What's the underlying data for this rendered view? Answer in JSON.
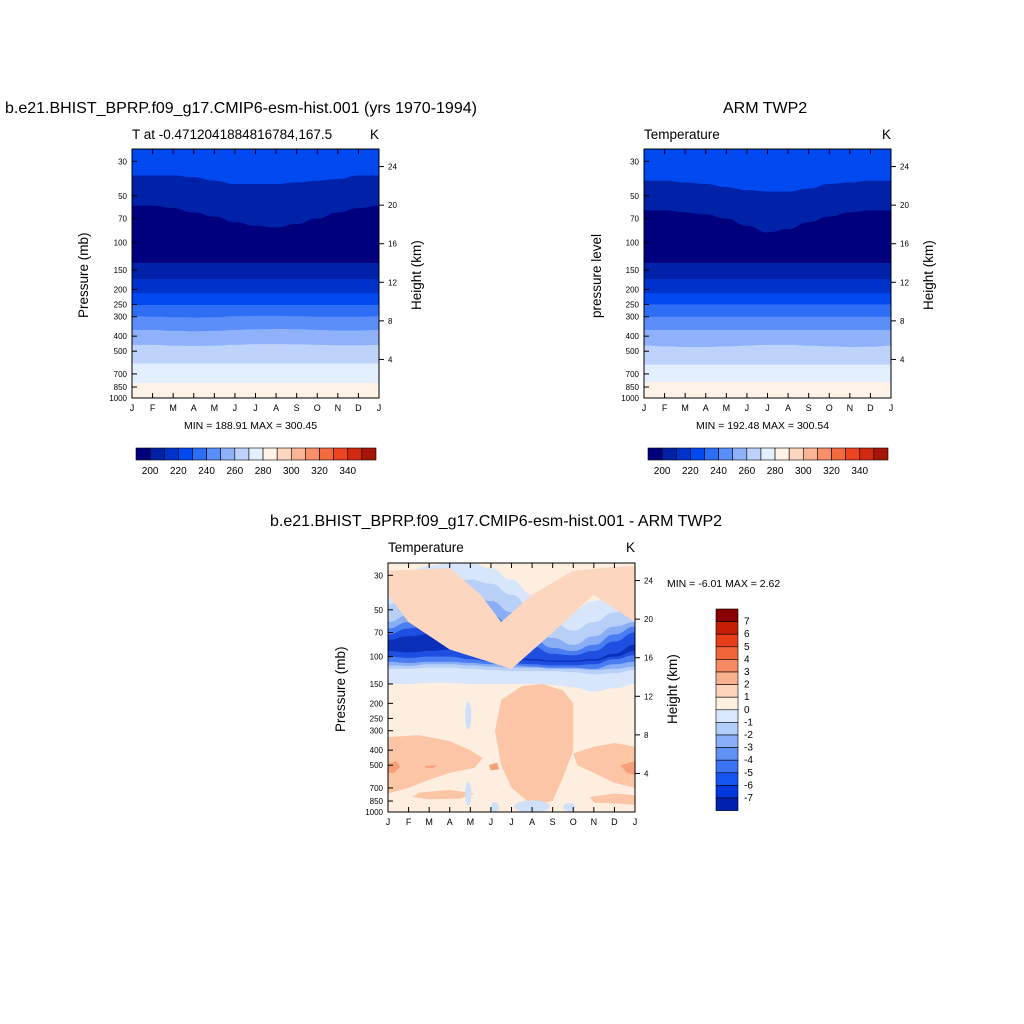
{
  "colors": {
    "t_levels": [
      "#00007f",
      "#0022a8",
      "#0033cc",
      "#0048f0",
      "#2e6ef5",
      "#5b8ef8",
      "#8fb1fa",
      "#bdd3fc",
      "#e3eefe",
      "#fff2e6",
      "#fdd6bf",
      "#fbb596",
      "#f8916a",
      "#f36a3f",
      "#ed4520",
      "#d22a10",
      "#a61605",
      "#7d0000"
    ],
    "d_levels": [
      "#000080",
      "#0020b0",
      "#0038e0",
      "#1555f0",
      "#3a74f3",
      "#5f91f6",
      "#8aaef8",
      "#b3cdfb",
      "#dae8fe",
      "#fff0e2",
      "#fcd3bb",
      "#f9b08f",
      "#f58a62",
      "#f06438",
      "#e63e18",
      "#c41f06",
      "#8a0000"
    ]
  },
  "panels": [
    {
      "title": "b.e21.BHIST_BPRP.f09_g17.CMIP6-esm-hist.001 (yrs 1970-1994)",
      "left_label": "T at -0.47120418848167​84,167.5",
      "right_label": "K",
      "ylabel": "Pressure (mb)",
      "ylabel_right": "Height (km)",
      "minmax": "MIN = 188.91 MAX = 300.45"
    },
    {
      "title": "ARM TWP2",
      "left_label": "Temperature",
      "right_label": "K",
      "ylabel": "pressure level",
      "ylabel_right": "Height (km)",
      "minmax": "MIN = 192.48 MAX = 300.54"
    },
    {
      "title": "b.e21.BHIST_BPRP.f09_g17.CMIP6-esm-hist.001 - ARM TWP2",
      "left_label": "Temperature",
      "right_label": "K",
      "ylabel": "Pressure (mb)",
      "ylabel_right": "Height (km)",
      "minmax": "MIN =  -6.01 MAX =   2.62"
    }
  ],
  "chart_data": [
    {
      "type": "heatmap",
      "x_tick_labels": [
        "J",
        "F",
        "M",
        "A",
        "M",
        "J",
        "J",
        "A",
        "S",
        "O",
        "N",
        "D",
        "J"
      ],
      "y_tick_labels": [
        "30",
        "50",
        "70",
        "100",
        "150",
        "200",
        "250",
        "300",
        "400",
        "500",
        "700",
        "850",
        "1000"
      ],
      "y_tick_values": [
        30,
        50,
        70,
        100,
        150,
        200,
        250,
        300,
        400,
        500,
        700,
        850,
        1000
      ],
      "y_scale": "log",
      "ylim": [
        25,
        1000
      ],
      "height_ticks": [
        "24",
        "20",
        "16",
        "12",
        "8",
        "4"
      ],
      "height_values": [
        24,
        20,
        16,
        12,
        8,
        4
      ],
      "colorbar_labels": [
        "200",
        "220",
        "240",
        "260",
        "280",
        "300",
        "320",
        "340"
      ],
      "boundaries": [
        {
          "name": "b1",
          "pressure": [
            37,
            37,
            37,
            38,
            40,
            42,
            42,
            42,
            41,
            40,
            39,
            37,
            37
          ]
        },
        {
          "name": "b2",
          "pressure": [
            58,
            58,
            60,
            64,
            68,
            74,
            78,
            80,
            76,
            70,
            64,
            60,
            58
          ]
        },
        {
          "name": "b3",
          "pressure": [
            135,
            135,
            135,
            135,
            135,
            135,
            135,
            135,
            135,
            135,
            135,
            135,
            135
          ]
        },
        {
          "name": "b4",
          "pressure": [
            172,
            172,
            172,
            172,
            172,
            172,
            172,
            172,
            172,
            172,
            172,
            172,
            172
          ]
        },
        {
          "name": "b5",
          "pressure": [
            212,
            212,
            212,
            212,
            212,
            212,
            212,
            212,
            212,
            212,
            212,
            212,
            212
          ]
        },
        {
          "name": "b6",
          "pressure": [
            252,
            252,
            252,
            252,
            252,
            252,
            252,
            252,
            252,
            252,
            252,
            252,
            252
          ]
        },
        {
          "name": "b7",
          "pressure": [
            298,
            300,
            302,
            304,
            302,
            298,
            296,
            296,
            298,
            300,
            300,
            300,
            298
          ]
        },
        {
          "name": "b8",
          "pressure": [
            365,
            365,
            370,
            372,
            370,
            365,
            362,
            360,
            362,
            365,
            368,
            368,
            365
          ]
        },
        {
          "name": "b9",
          "pressure": [
            455,
            455,
            460,
            462,
            460,
            455,
            450,
            450,
            452,
            455,
            458,
            458,
            455
          ]
        },
        {
          "name": "b10",
          "pressure": [
            600,
            600,
            600,
            600,
            600,
            600,
            600,
            600,
            600,
            600,
            600,
            600,
            600
          ]
        },
        {
          "name": "b11",
          "pressure": [
            800,
            800,
            800,
            800,
            800,
            800,
            800,
            800,
            800,
            800,
            800,
            800,
            800
          ]
        },
        {
          "name": "b12",
          "pressure": [
            990,
            990,
            990,
            990,
            990,
            990,
            990,
            990,
            990,
            990,
            990,
            990,
            990
          ]
        }
      ],
      "band_colors": [
        3,
        1,
        0,
        1,
        2,
        3,
        4,
        5,
        6,
        7,
        8,
        9,
        10
      ],
      "min": 188.91,
      "max": 300.45
    },
    {
      "type": "heatmap",
      "x_tick_labels": [
        "J",
        "F",
        "M",
        "A",
        "M",
        "J",
        "J",
        "A",
        "S",
        "O",
        "N",
        "D",
        "J"
      ],
      "y_tick_labels": [
        "30",
        "50",
        "70",
        "100",
        "150",
        "200",
        "250",
        "300",
        "400",
        "500",
        "700",
        "850",
        "1000"
      ],
      "y_tick_values": [
        30,
        50,
        70,
        100,
        150,
        200,
        250,
        300,
        400,
        500,
        700,
        850,
        1000
      ],
      "y_scale": "log",
      "ylim": [
        25,
        1000
      ],
      "height_ticks": [
        "24",
        "20",
        "16",
        "12",
        "8",
        "4"
      ],
      "height_values": [
        24,
        20,
        16,
        12,
        8,
        4
      ],
      "colorbar_labels": [
        "200",
        "220",
        "240",
        "260",
        "280",
        "300",
        "320",
        "340"
      ],
      "boundaries": [
        {
          "name": "b1",
          "pressure": [
            40,
            40,
            41,
            42,
            44,
            46,
            47,
            47,
            45,
            42,
            41,
            40,
            40
          ]
        },
        {
          "name": "b2",
          "pressure": [
            62,
            62,
            64,
            66,
            70,
            78,
            86,
            82,
            74,
            68,
            64,
            62,
            62
          ]
        },
        {
          "name": "b3",
          "pressure": [
            135,
            135,
            135,
            135,
            135,
            135,
            135,
            135,
            135,
            135,
            135,
            135,
            135
          ]
        },
        {
          "name": "b4",
          "pressure": [
            172,
            172,
            172,
            172,
            172,
            172,
            172,
            172,
            172,
            172,
            172,
            172,
            172
          ]
        },
        {
          "name": "b5",
          "pressure": [
            212,
            212,
            212,
            212,
            212,
            212,
            212,
            212,
            212,
            212,
            212,
            212,
            212
          ]
        },
        {
          "name": "b6",
          "pressure": [
            250,
            250,
            250,
            250,
            250,
            250,
            250,
            250,
            250,
            250,
            250,
            250,
            250
          ]
        },
        {
          "name": "b7",
          "pressure": [
            300,
            300,
            300,
            300,
            300,
            300,
            300,
            300,
            300,
            300,
            300,
            300,
            300
          ]
        },
        {
          "name": "b8",
          "pressure": [
            365,
            365,
            365,
            365,
            365,
            365,
            365,
            365,
            365,
            365,
            365,
            365,
            365
          ]
        },
        {
          "name": "b9",
          "pressure": [
            460,
            465,
            470,
            470,
            465,
            460,
            455,
            455,
            460,
            465,
            470,
            468,
            460
          ]
        },
        {
          "name": "b10",
          "pressure": [
            610,
            610,
            610,
            610,
            610,
            610,
            610,
            610,
            610,
            610,
            610,
            610,
            610
          ]
        },
        {
          "name": "b11",
          "pressure": [
            790,
            790,
            790,
            790,
            790,
            790,
            790,
            790,
            790,
            790,
            790,
            790,
            790
          ]
        }
      ],
      "band_colors": [
        3,
        1,
        0,
        1,
        2,
        3,
        4,
        5,
        6,
        7,
        8,
        9
      ],
      "min": 192.48,
      "max": 300.54
    },
    {
      "type": "heatmap",
      "x_tick_labels": [
        "J",
        "F",
        "M",
        "A",
        "M",
        "J",
        "J",
        "A",
        "S",
        "O",
        "N",
        "D",
        "J"
      ],
      "y_tick_labels": [
        "30",
        "50",
        "70",
        "100",
        "150",
        "200",
        "250",
        "300",
        "400",
        "500",
        "700",
        "850",
        "1000"
      ],
      "y_tick_values": [
        30,
        50,
        70,
        100,
        150,
        200,
        250,
        300,
        400,
        500,
        700,
        850,
        1000
      ],
      "y_scale": "log",
      "ylim": [
        25,
        1000
      ],
      "height_ticks": [
        "24",
        "20",
        "16",
        "12",
        "8",
        "4"
      ],
      "height_values": [
        24,
        20,
        16,
        12,
        8,
        4
      ],
      "colorbar_labels": [
        "7",
        "6",
        "5",
        "4",
        "3",
        "2",
        "1",
        "0",
        "-1",
        "-2",
        "-3",
        "-4",
        "-5",
        "-6",
        "-7"
      ],
      "min": -6.01,
      "max": 2.62
    }
  ]
}
